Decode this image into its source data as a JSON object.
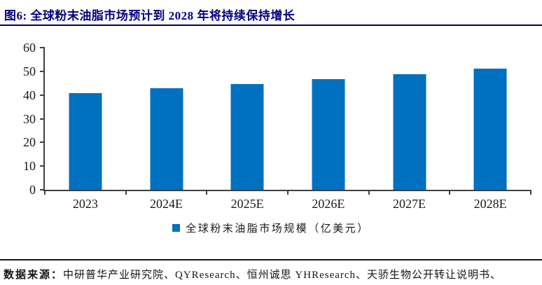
{
  "header": {
    "title": "图6: 全球粉末油脂市场预计到 2028 年将持续保持增长"
  },
  "chart_data": {
    "type": "bar",
    "categories": [
      "2023",
      "2024E",
      "2025E",
      "2026E",
      "2027E",
      "2028E"
    ],
    "values": [
      40.9,
      42.8,
      44.7,
      46.8,
      48.9,
      51.2
    ],
    "title": "全球粉末油脂市场预计到 2028 年将持续保持增长",
    "xlabel": "",
    "ylabel": "",
    "ylim": [
      0,
      60
    ],
    "yticks": [
      0,
      10,
      20,
      30,
      40,
      50,
      60
    ],
    "grid": false,
    "legend": "全球粉末油脂市场规模（亿美元）",
    "legend_position": "bottom",
    "bar_color": "#0070C0"
  },
  "footer": {
    "source_label": "数据来源：",
    "source_text": "中研普华产业研究院、QYResearch、恒州诚思 YHResearch、天骄生物公开转让说明书、"
  },
  "colors": {
    "title": "#000080",
    "bar": "#0070C0",
    "axis": "#404040",
    "rule": "#1a1a1a"
  }
}
